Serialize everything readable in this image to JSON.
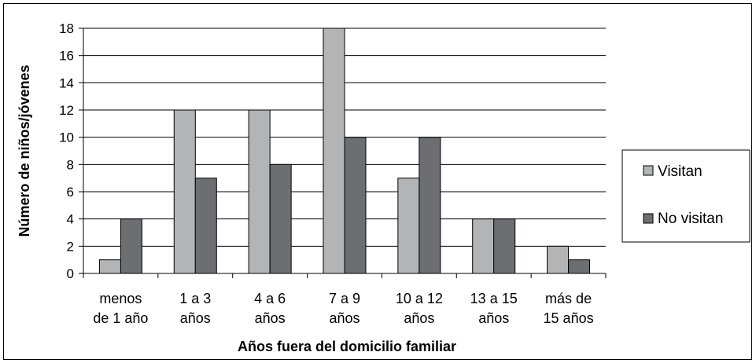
{
  "chart_data": {
    "type": "bar",
    "categories": [
      [
        "menos",
        "de 1 año"
      ],
      [
        "1 a 3",
        "años"
      ],
      [
        "4 a 6",
        "años"
      ],
      [
        "7 a 9",
        "años"
      ],
      [
        "10 a 12",
        "años"
      ],
      [
        "13 a 15",
        "años"
      ],
      [
        "más de",
        "15 años"
      ]
    ],
    "series": [
      {
        "name": "Visitan",
        "color": "#b2b4b6",
        "values": [
          1,
          12,
          12,
          18,
          7,
          4,
          2
        ]
      },
      {
        "name": "No visitan",
        "color": "#6d6e71",
        "values": [
          4,
          7,
          8,
          10,
          10,
          4,
          1
        ]
      }
    ],
    "title": "",
    "xlabel": "Años fuera del domicilio familiar",
    "ylabel": "Número de niños/jóvenes",
    "ylim": [
      0,
      18
    ],
    "yticks": [
      0,
      2,
      4,
      6,
      8,
      10,
      12,
      14,
      16,
      18
    ],
    "grid": true,
    "legend": "right"
  }
}
